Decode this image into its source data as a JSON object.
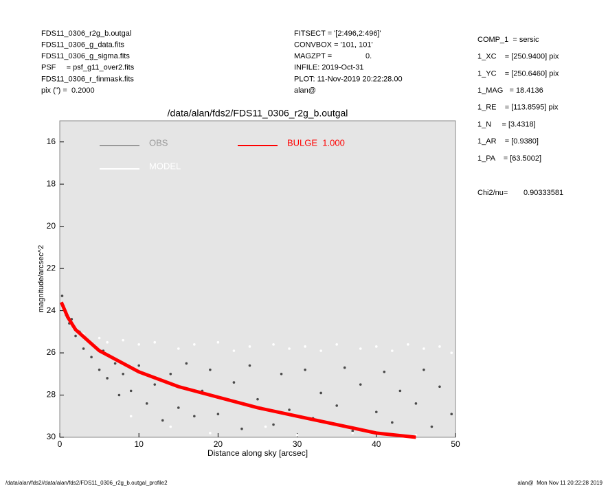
{
  "header_left": [
    "FDS11_0306_r2g_b.outgal",
    "FDS11_0306_g_data.fits",
    "FDS11_0306_g_sigma.fits",
    "PSF     = psf_g11_over2.fits",
    "FDS11_0306_r_finmask.fits",
    "pix (\") =  0.2000"
  ],
  "header_middle": [
    "FITSECT = '[2:496,2:496]'",
    "CONVBOX = '101, 101'",
    "MAGZPT =                0.",
    "INFILE: 2019-Oct-31",
    "PLOT: 11-Nov-2019 20:22:28.00",
    "alan@"
  ],
  "params": [
    "COMP_1  = sersic",
    "1_XC    = [250.9400] pix",
    "1_YC    = [250.6460] pix",
    "1_MAG   = 18.4136",
    "1_RE    = [113.8595] pix",
    "1_N     = [3.4318]",
    "1_AR    = [0.9380]",
    "1_PA    = [63.5002]"
  ],
  "chi2": {
    "label": "Chi2/nu=",
    "value": "0.90333581"
  },
  "footer": {
    "left": "/data/alan/fds2//data/alan/fds2/FDS11_0306_r2g_b.outgal_profile2",
    "right": "alan@  Mon Nov 11 20:22:28 2019"
  },
  "chart_data": {
    "type": "scatter",
    "title": "/data/alan/fds2/FDS11_0306_r2g_b.outgal",
    "xlabel": "Distance along sky [arcsec]",
    "ylabel": "magnitude/arcsec^2",
    "xlim": [
      0,
      50
    ],
    "ylim": [
      30,
      15
    ],
    "xticks": [
      0,
      10,
      20,
      30,
      40,
      50
    ],
    "yticks": [
      16,
      18,
      20,
      22,
      24,
      26,
      28,
      30
    ],
    "series": [
      {
        "name": "OBS",
        "color": "#4a4a4a",
        "kind": "points",
        "x": [
          0.3,
          0.5,
          0.8,
          1.2,
          1.5,
          2,
          2.5,
          3,
          3.5,
          4,
          5,
          5.5,
          6,
          7,
          7.5,
          8,
          9,
          10,
          11,
          12,
          13,
          14,
          15,
          16,
          17,
          18,
          19,
          20,
          22,
          23,
          24,
          25,
          27,
          28,
          29,
          31,
          32,
          33,
          35,
          36,
          37,
          38,
          40,
          41,
          42,
          43,
          45,
          46,
          47,
          48,
          49.5
        ],
        "values": [
          23.3,
          23.8,
          24.2,
          24.6,
          24.4,
          25.2,
          25.0,
          25.8,
          25.4,
          26.2,
          26.8,
          25.9,
          27.2,
          26.5,
          28.0,
          27.0,
          27.8,
          26.6,
          28.4,
          27.5,
          29.2,
          27.0,
          28.6,
          26.5,
          29.0,
          27.8,
          26.8,
          28.9,
          27.4,
          29.6,
          26.6,
          28.2,
          29.4,
          27.0,
          28.7,
          26.8,
          29.1,
          27.9,
          28.5,
          26.7,
          29.7,
          27.5,
          28.8,
          26.9,
          29.3,
          27.8,
          28.4,
          26.8,
          29.5,
          27.6,
          28.9
        ]
      },
      {
        "name": "MODEL",
        "color": "#ffffff",
        "kind": "points",
        "x": [
          3,
          5,
          6,
          8,
          9,
          10,
          12,
          14,
          15,
          17,
          19,
          20,
          22,
          24,
          26,
          27,
          29,
          30,
          31,
          33,
          35,
          37,
          38,
          40,
          42,
          44,
          45,
          46,
          48,
          49.5
        ],
        "values": [
          25.1,
          25.3,
          25.5,
          25.4,
          29.0,
          25.6,
          25.5,
          29.5,
          25.8,
          25.6,
          29.8,
          25.5,
          25.9,
          25.7,
          29.5,
          25.6,
          25.8,
          29.9,
          25.7,
          25.9,
          25.6,
          29.8,
          25.8,
          25.7,
          25.9,
          25.6,
          29.9,
          25.8,
          25.7,
          26.0
        ]
      },
      {
        "name": "BULGE  1.000",
        "color": "#ff0000",
        "kind": "line",
        "x": [
          0.2,
          1,
          2,
          5,
          10,
          15,
          20,
          25,
          30,
          35,
          40,
          45
        ],
        "values": [
          23.6,
          24.3,
          24.9,
          25.9,
          26.9,
          27.6,
          28.1,
          28.6,
          29.0,
          29.4,
          29.8,
          30.0
        ]
      }
    ]
  }
}
